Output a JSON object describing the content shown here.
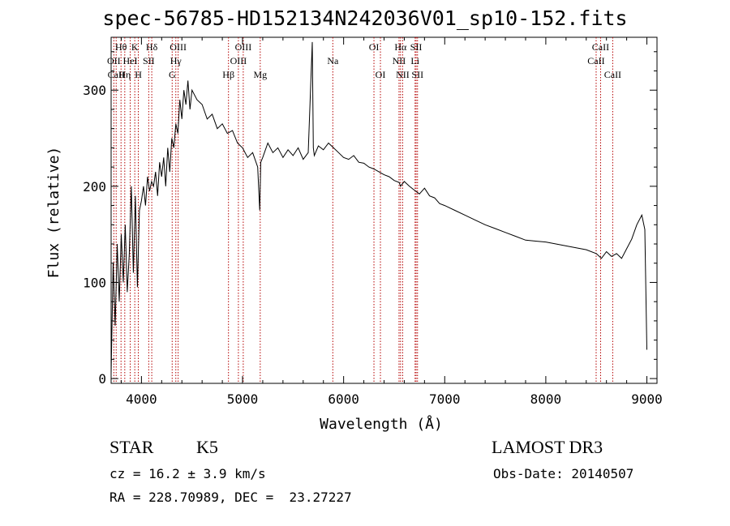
{
  "title": "spec-56785-HD152134N242036V01_sp10-152.fits",
  "info": {
    "object_class": "STAR",
    "subclass": "K5",
    "survey": "LAMOST DR3",
    "redshift": "cz = 16.2 ± 3.9 km/s",
    "obs_date": "Obs-Date: 20140507",
    "coords": "RA = 228.70989, DEC =  23.27227"
  },
  "chart_data": {
    "type": "line",
    "title": "spec-56785-HD152134N242036V01_sp10-152.fits",
    "xlabel": "Wavelength (Å)",
    "ylabel": "Flux (relative)",
    "xlim": [
      3700,
      9100
    ],
    "ylim": [
      -5,
      355
    ],
    "xticks": [
      4000,
      5000,
      6000,
      7000,
      8000,
      9000
    ],
    "yticks": [
      0,
      100,
      200,
      300
    ],
    "series": [
      {
        "name": "flux",
        "color": "#000000",
        "x": [
          3700,
          3720,
          3740,
          3760,
          3780,
          3800,
          3820,
          3840,
          3860,
          3880,
          3900,
          3920,
          3940,
          3960,
          3980,
          4000,
          4020,
          4040,
          4060,
          4080,
          4100,
          4120,
          4140,
          4160,
          4180,
          4200,
          4220,
          4240,
          4260,
          4280,
          4300,
          4320,
          4340,
          4360,
          4380,
          4400,
          4420,
          4440,
          4460,
          4480,
          4500,
          4550,
          4600,
          4650,
          4700,
          4750,
          4800,
          4850,
          4900,
          4950,
          5000,
          5050,
          5100,
          5150,
          5170,
          5180,
          5200,
          5250,
          5300,
          5350,
          5400,
          5450,
          5500,
          5550,
          5600,
          5650,
          5690,
          5700,
          5710,
          5750,
          5800,
          5850,
          5900,
          5950,
          6000,
          6050,
          6100,
          6150,
          6200,
          6250,
          6300,
          6350,
          6400,
          6450,
          6500,
          6550,
          6563,
          6600,
          6650,
          6700,
          6750,
          6800,
          6850,
          6900,
          6950,
          7000,
          7100,
          7200,
          7300,
          7400,
          7500,
          7600,
          7700,
          7800,
          7900,
          8000,
          8100,
          8200,
          8300,
          8400,
          8500,
          8550,
          8600,
          8650,
          8700,
          8750,
          8800,
          8850,
          8900,
          8950,
          8980,
          9000
        ],
        "values": [
          5,
          120,
          55,
          140,
          80,
          150,
          100,
          160,
          90,
          130,
          200,
          110,
          190,
          95,
          175,
          185,
          200,
          180,
          210,
          195,
          205,
          200,
          215,
          190,
          225,
          210,
          230,
          200,
          240,
          215,
          250,
          240,
          265,
          255,
          290,
          270,
          300,
          285,
          310,
          280,
          300,
          290,
          285,
          270,
          275,
          260,
          265,
          255,
          258,
          245,
          240,
          230,
          235,
          220,
          175,
          225,
          230,
          245,
          235,
          240,
          230,
          238,
          232,
          240,
          228,
          235,
          350,
          240,
          232,
          242,
          238,
          245,
          240,
          235,
          230,
          228,
          232,
          225,
          224,
          220,
          218,
          215,
          212,
          210,
          206,
          204,
          200,
          205,
          200,
          196,
          192,
          198,
          190,
          188,
          182,
          180,
          175,
          170,
          165,
          160,
          156,
          152,
          148,
          144,
          143,
          142,
          140,
          138,
          136,
          134,
          130,
          125,
          132,
          127,
          130,
          125,
          135,
          145,
          160,
          170,
          155,
          30
        ]
      }
    ],
    "line_markers": [
      {
        "name": "Hθ",
        "x": 3798,
        "row": 0
      },
      {
        "name": "OII",
        "x": 3727,
        "row": 1
      },
      {
        "name": "CaII",
        "x": 3750,
        "row": 2
      },
      {
        "name": "Hη",
        "x": 3835,
        "row": 2
      },
      {
        "name": "HeI",
        "x": 3889,
        "row": 1
      },
      {
        "name": "K",
        "x": 3934,
        "row": 0
      },
      {
        "name": "H",
        "x": 3969,
        "row": 2
      },
      {
        "name": "SII",
        "x": 4072,
        "row": 1
      },
      {
        "name": "Hδ",
        "x": 4102,
        "row": 0
      },
      {
        "name": "OIII",
        "x": 4363,
        "row": 0
      },
      {
        "name": "Hγ",
        "x": 4340,
        "row": 1
      },
      {
        "name": "G",
        "x": 4304,
        "row": 2
      },
      {
        "name": "Hβ",
        "x": 4861,
        "row": 2
      },
      {
        "name": "OIII",
        "x": 4959,
        "row": 1
      },
      {
        "name": "OIII",
        "x": 5007,
        "row": 0
      },
      {
        "name": "Mg",
        "x": 5175,
        "row": 2
      },
      {
        "name": "Na",
        "x": 5893,
        "row": 1
      },
      {
        "name": "OI",
        "x": 6300,
        "row": 0
      },
      {
        "name": "OI",
        "x": 6364,
        "row": 2
      },
      {
        "name": "Hα",
        "x": 6563,
        "row": 0
      },
      {
        "name": "NII",
        "x": 6548,
        "row": 1
      },
      {
        "name": "NII",
        "x": 6584,
        "row": 2
      },
      {
        "name": "SII",
        "x": 6717,
        "row": 0
      },
      {
        "name": "Li",
        "x": 6707,
        "row": 1
      },
      {
        "name": "SII",
        "x": 6731,
        "row": 2
      },
      {
        "name": "CaII",
        "x": 8542,
        "row": 0
      },
      {
        "name": "CaII",
        "x": 8498,
        "row": 1
      },
      {
        "name": "CaII",
        "x": 8662,
        "row": 2
      }
    ]
  }
}
